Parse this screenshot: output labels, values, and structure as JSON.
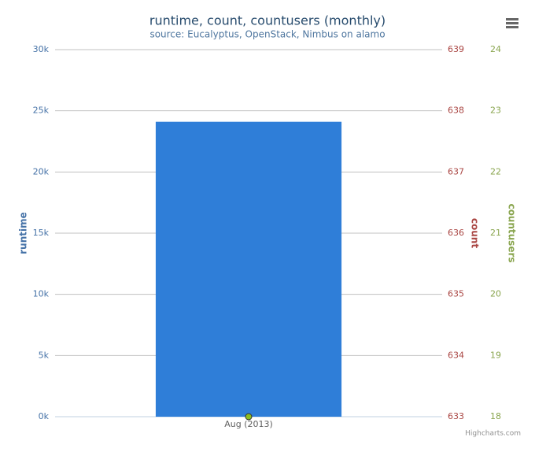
{
  "chart_data": {
    "type": "bar",
    "title": "runtime, count, countusers (monthly)",
    "subtitle": "source: Eucalyptus, OpenStack, Nimbus on alamo",
    "categories": [
      "Aug (2013)"
    ],
    "series": [
      {
        "type": "bar",
        "color": "#2f7ed8",
        "values": [
          24100
        ]
      },
      {
        "type": "scatter",
        "color": "#8bbc21",
        "axis": "y3",
        "values": [
          18
        ]
      }
    ],
    "ylabel": "runtime",
    "y2label": "count",
    "y3label": "countusers",
    "ylim": [
      0,
      30000
    ],
    "yticks": [
      {
        "value": 0,
        "label": "0k"
      },
      {
        "value": 5000,
        "label": "5k"
      },
      {
        "value": 10000,
        "label": "10k"
      },
      {
        "value": 15000,
        "label": "15k"
      },
      {
        "value": 20000,
        "label": "20k"
      },
      {
        "value": 25000,
        "label": "25k"
      },
      {
        "value": 30000,
        "label": "30k"
      }
    ],
    "y2lim": [
      633,
      639
    ],
    "y2ticks": [
      633,
      634,
      635,
      636,
      637,
      638,
      639
    ],
    "y3lim": [
      18,
      24
    ],
    "y3ticks": [
      18,
      19,
      20,
      21,
      22,
      23,
      24
    ],
    "grid": true,
    "credits": "Highcharts.com"
  }
}
